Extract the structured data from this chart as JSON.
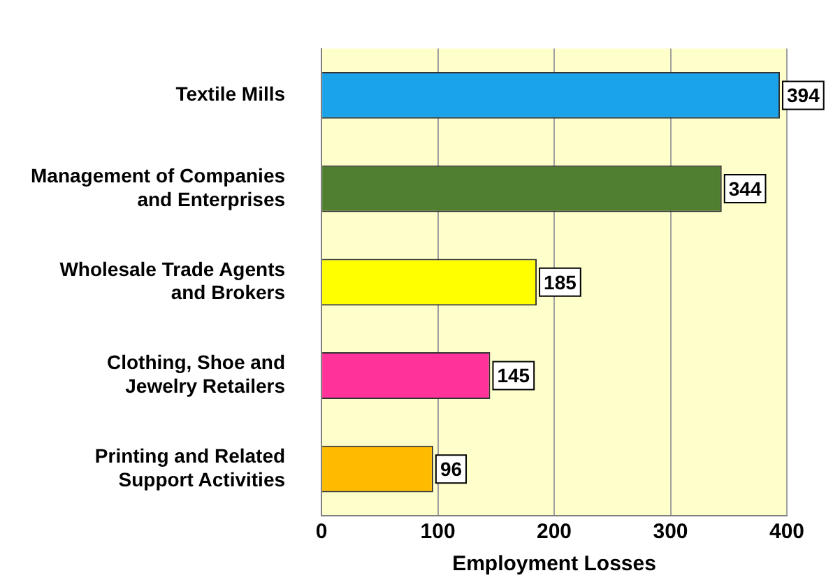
{
  "chart_data": {
    "type": "bar",
    "orientation": "horizontal",
    "xlabel": "Employment Losses",
    "categories": [
      "Textile Mills",
      "Management of Companies and Enterprises",
      "Wholesale Trade Agents and Brokers",
      "Clothing, Shoe and Jewelry Retailers",
      "Printing and Related Support Activities"
    ],
    "values": [
      394,
      344,
      185,
      145,
      96
    ],
    "colors": [
      "#1aa3e8",
      "#4f7f2f",
      "#ffff00",
      "#ff3399",
      "#ffbb00"
    ],
    "xlim": [
      0,
      400
    ],
    "xticks": [
      0,
      100,
      200,
      300,
      400
    ],
    "grid": "x",
    "legend": false,
    "data_labels": true
  }
}
